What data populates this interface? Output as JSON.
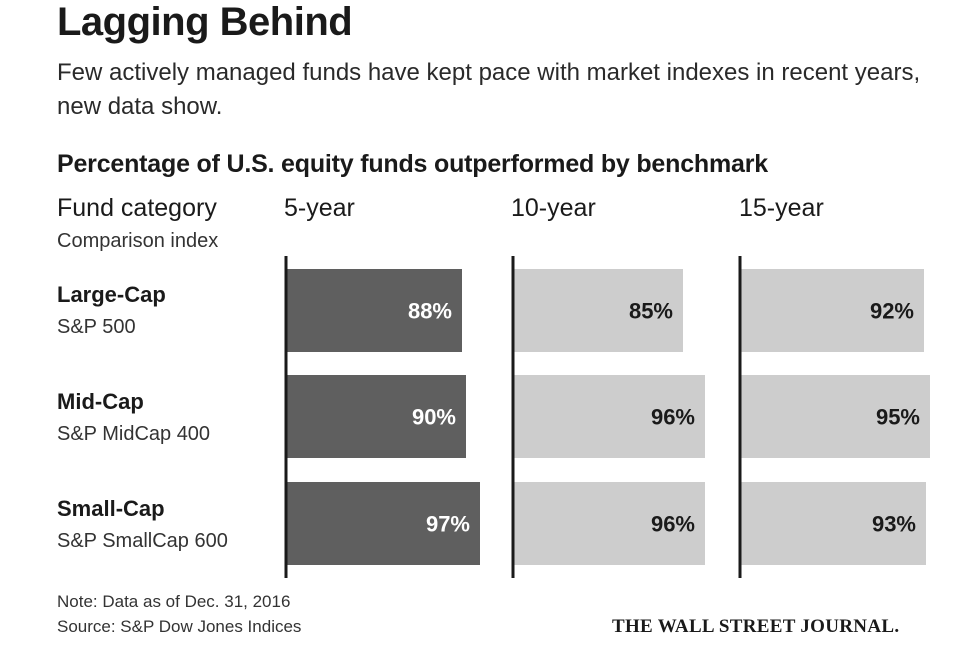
{
  "title": "Lagging Behind",
  "subtitle": "Few actively managed funds have kept pace with market indexes in recent years, new data show.",
  "section_title": "Percentage of U.S. equity funds outperformed by benchmark",
  "header": {
    "fund_category": "Fund category",
    "comparison_index": "Comparison index"
  },
  "rows": [
    {
      "category": "Large-Cap",
      "index": "S&P 500"
    },
    {
      "category": "Mid-Cap",
      "index": "S&P MidCap 400"
    },
    {
      "category": "Small-Cap",
      "index": "S&P SmallCap 600"
    }
  ],
  "note": "Note: Data as of Dec. 31, 2016",
  "source": "Source: S&P Dow Jones Indices",
  "publisher": "THE WALL STREET JOURNAL.",
  "colors": {
    "five_year_bar": "#5f5f5f",
    "other_bar": "#cdcdcd",
    "axis": "#1a1a1a",
    "label_on_dark": "#ffffff",
    "label_on_light": "#1a1a1a"
  },
  "chart_data": {
    "type": "bar",
    "orientation": "horizontal",
    "categories": [
      "Large-Cap",
      "Mid-Cap",
      "Small-Cap"
    ],
    "series": [
      {
        "name": "5-year",
        "values": [
          88,
          90,
          97
        ],
        "labels": [
          "88%",
          "90%",
          "97%"
        ]
      },
      {
        "name": "10-year",
        "values": [
          85,
          96,
          96
        ],
        "labels": [
          "85%",
          "96%",
          "96%"
        ]
      },
      {
        "name": "15-year",
        "values": [
          92,
          95,
          93
        ],
        "labels": [
          "92%",
          "95%",
          "93%"
        ]
      }
    ],
    "title": "Percentage of U.S. equity funds outperformed by benchmark",
    "xlabel": "",
    "ylabel": "",
    "xlim": [
      0,
      100
    ],
    "grid": false,
    "legend": "none"
  }
}
